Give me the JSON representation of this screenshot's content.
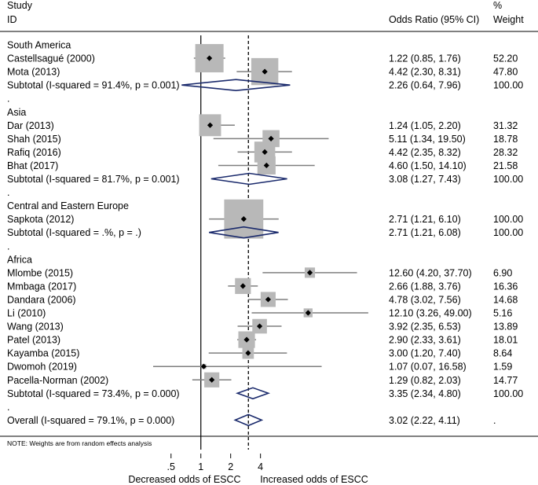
{
  "chart_data": {
    "type": "forest",
    "header": {
      "study_line1": "Study",
      "study_line2": "ID",
      "or_header": "Odds Ratio (95% CI)",
      "weight_line1": "%",
      "weight_line2": "Weight"
    },
    "scale": "log",
    "xlim": [
      0.33,
      60
    ],
    "null_value": 1,
    "overall_value": 3.02,
    "xticks": [
      {
        "value": 0.5,
        "label": ".5"
      },
      {
        "value": 1,
        "label": "1"
      },
      {
        "value": 2,
        "label": "2"
      },
      {
        "value": 4,
        "label": "4"
      }
    ],
    "xlabel_left": "Decreased odds of ESCC",
    "xlabel_right": "Increased odds of ESCC",
    "note": "NOTE: Weights are from random effects analysis",
    "rows": [
      {
        "kind": "group",
        "label": "South America"
      },
      {
        "kind": "study",
        "label": "Castellsagué (2000)",
        "or": 1.22,
        "lo": 0.85,
        "hi": 1.76,
        "ci_text": "1.22 (0.85, 1.76)",
        "weight": "52.20"
      },
      {
        "kind": "study",
        "label": "Mota (2013)",
        "or": 4.42,
        "lo": 2.3,
        "hi": 8.31,
        "ci_text": "4.42 (2.30, 8.31)",
        "weight": "47.80"
      },
      {
        "kind": "subtotal",
        "label": "Subtotal  (I-squared = 91.4%, p = 0.001)",
        "or": 2.26,
        "lo": 0.64,
        "hi": 7.96,
        "ci_text": "2.26 (0.64, 7.96)",
        "weight": "100.00"
      },
      {
        "kind": "dot",
        "label": "."
      },
      {
        "kind": "group",
        "label": "Asia"
      },
      {
        "kind": "study",
        "label": "Dar (2013)",
        "or": 1.24,
        "lo": 1.05,
        "hi": 2.2,
        "ci_text": "1.24 (1.05, 2.20)",
        "weight": "31.32"
      },
      {
        "kind": "study",
        "label": "Shah (2015)",
        "or": 5.11,
        "lo": 1.34,
        "hi": 19.5,
        "ci_text": "5.11 (1.34, 19.50)",
        "weight": "18.78"
      },
      {
        "kind": "study",
        "label": "Rafiq (2016)",
        "or": 4.42,
        "lo": 2.35,
        "hi": 8.32,
        "ci_text": "4.42 (2.35, 8.32)",
        "weight": "28.32"
      },
      {
        "kind": "study",
        "label": "Bhat (2017)",
        "or": 4.6,
        "lo": 1.5,
        "hi": 14.1,
        "ci_text": "4.60 (1.50, 14.10)",
        "weight": "21.58"
      },
      {
        "kind": "subtotal",
        "label": "Subtotal  (I-squared = 81.7%, p = 0.001)",
        "or": 3.08,
        "lo": 1.27,
        "hi": 7.43,
        "ci_text": "3.08 (1.27, 7.43)",
        "weight": "100.00"
      },
      {
        "kind": "dot",
        "label": "."
      },
      {
        "kind": "group",
        "label": "Central and Eastern Europe"
      },
      {
        "kind": "study",
        "label": "Sapkota (2012)",
        "or": 2.71,
        "lo": 1.21,
        "hi": 6.1,
        "ci_text": "2.71 (1.21, 6.10)",
        "weight": "100.00"
      },
      {
        "kind": "subtotal",
        "label": "Subtotal  (I-squared = .%, p = .)",
        "or": 2.71,
        "lo": 1.21,
        "hi": 6.08,
        "ci_text": "2.71 (1.21, 6.08)",
        "weight": "100.00"
      },
      {
        "kind": "dot",
        "label": "."
      },
      {
        "kind": "group",
        "label": "Africa"
      },
      {
        "kind": "study",
        "label": "Mlombe (2015)",
        "or": 12.6,
        "lo": 4.2,
        "hi": 37.7,
        "ci_text": "12.60 (4.20, 37.70)",
        "weight": "6.90"
      },
      {
        "kind": "study",
        "label": "Mmbaga (2017)",
        "or": 2.66,
        "lo": 1.88,
        "hi": 3.76,
        "ci_text": "2.66 (1.88, 3.76)",
        "weight": "16.36"
      },
      {
        "kind": "study",
        "label": "Dandara (2006)",
        "or": 4.78,
        "lo": 3.02,
        "hi": 7.56,
        "ci_text": "4.78 (3.02, 7.56)",
        "weight": "14.68"
      },
      {
        "kind": "study",
        "label": "Li (2010)",
        "or": 12.1,
        "lo": 3.26,
        "hi": 49.0,
        "ci_text": "12.10 (3.26, 49.00)",
        "weight": "5.16"
      },
      {
        "kind": "study",
        "label": "Wang (2013)",
        "or": 3.92,
        "lo": 2.35,
        "hi": 6.53,
        "ci_text": "3.92 (2.35, 6.53)",
        "weight": "13.89"
      },
      {
        "kind": "study",
        "label": "Patel (2013)",
        "or": 2.9,
        "lo": 2.33,
        "hi": 3.61,
        "ci_text": "2.90 (2.33, 3.61)",
        "weight": "18.01"
      },
      {
        "kind": "study",
        "label": "Kayamba (2015)",
        "or": 3.0,
        "lo": 1.2,
        "hi": 7.4,
        "ci_text": "3.00 (1.20, 7.40)",
        "weight": "8.64"
      },
      {
        "kind": "study",
        "label": "Dwomoh (2019)",
        "or": 1.07,
        "lo": 0.07,
        "hi": 16.58,
        "ci_text": "1.07 (0.07, 16.58)",
        "weight": "1.59"
      },
      {
        "kind": "study",
        "label": "Pacella-Norman (2002)",
        "or": 1.29,
        "lo": 0.82,
        "hi": 2.03,
        "ci_text": "1.29 (0.82, 2.03)",
        "weight": "14.77"
      },
      {
        "kind": "subtotal",
        "label": "Subtotal  (I-squared = 73.4%, p = 0.000)",
        "or": 3.35,
        "lo": 2.34,
        "hi": 4.8,
        "ci_text": "3.35 (2.34, 4.80)",
        "weight": "100.00"
      },
      {
        "kind": "dot",
        "label": "."
      },
      {
        "kind": "overall",
        "label": "Overall  (I-squared = 79.1%, p = 0.000)",
        "or": 3.02,
        "lo": 2.22,
        "hi": 4.11,
        "ci_text": "3.02 (2.22, 4.11)",
        "weight": "."
      }
    ]
  },
  "colors": {
    "box": "#b8b8b8",
    "ci_line": "#7f7f7f",
    "diamond": "#1a2a6c",
    "axis": "#000000"
  }
}
